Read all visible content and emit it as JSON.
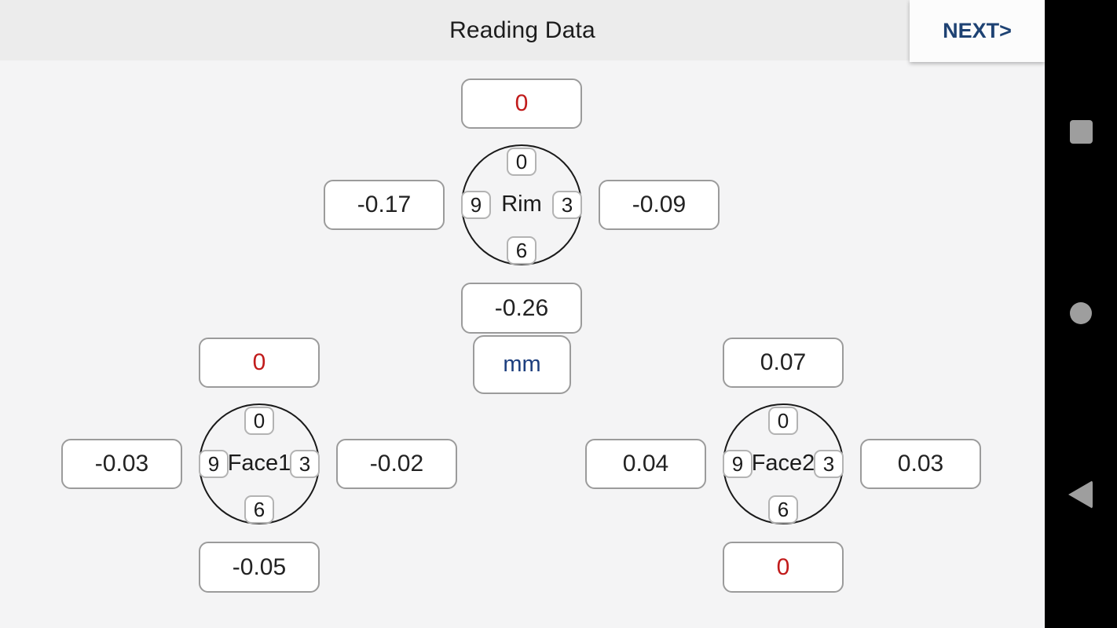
{
  "header": {
    "title": "Reading Data",
    "next_label": "NEXT>"
  },
  "unit": {
    "label": "mm"
  },
  "dials": [
    {
      "name": "Rim",
      "pos_top": "0",
      "pos_right": "3",
      "pos_bottom": "6",
      "pos_left": "9",
      "reading_top": "0",
      "reading_left": "-0.17",
      "reading_right": "-0.09",
      "reading_bottom": "-0.26"
    },
    {
      "name": "Face1",
      "pos_top": "0",
      "pos_right": "3",
      "pos_bottom": "6",
      "pos_left": "9",
      "reading_top": "0",
      "reading_left": "-0.03",
      "reading_right": "-0.02",
      "reading_bottom": "-0.05"
    },
    {
      "name": "Face2",
      "pos_top": "0",
      "pos_right": "3",
      "pos_bottom": "6",
      "pos_left": "9",
      "reading_top": "0.07",
      "reading_left": "0.04",
      "reading_right": "0.03",
      "reading_bottom": "0"
    }
  ],
  "colors": {
    "zero_highlight_red": "#c11b1b",
    "unit_blue": "#1c3e7e",
    "next_navy": "#1e4273",
    "topbar_bg": "#ececec",
    "content_bg": "#f4f4f5"
  },
  "nav": {
    "icons": [
      "recents-square",
      "home-circle",
      "back-triangle"
    ]
  }
}
